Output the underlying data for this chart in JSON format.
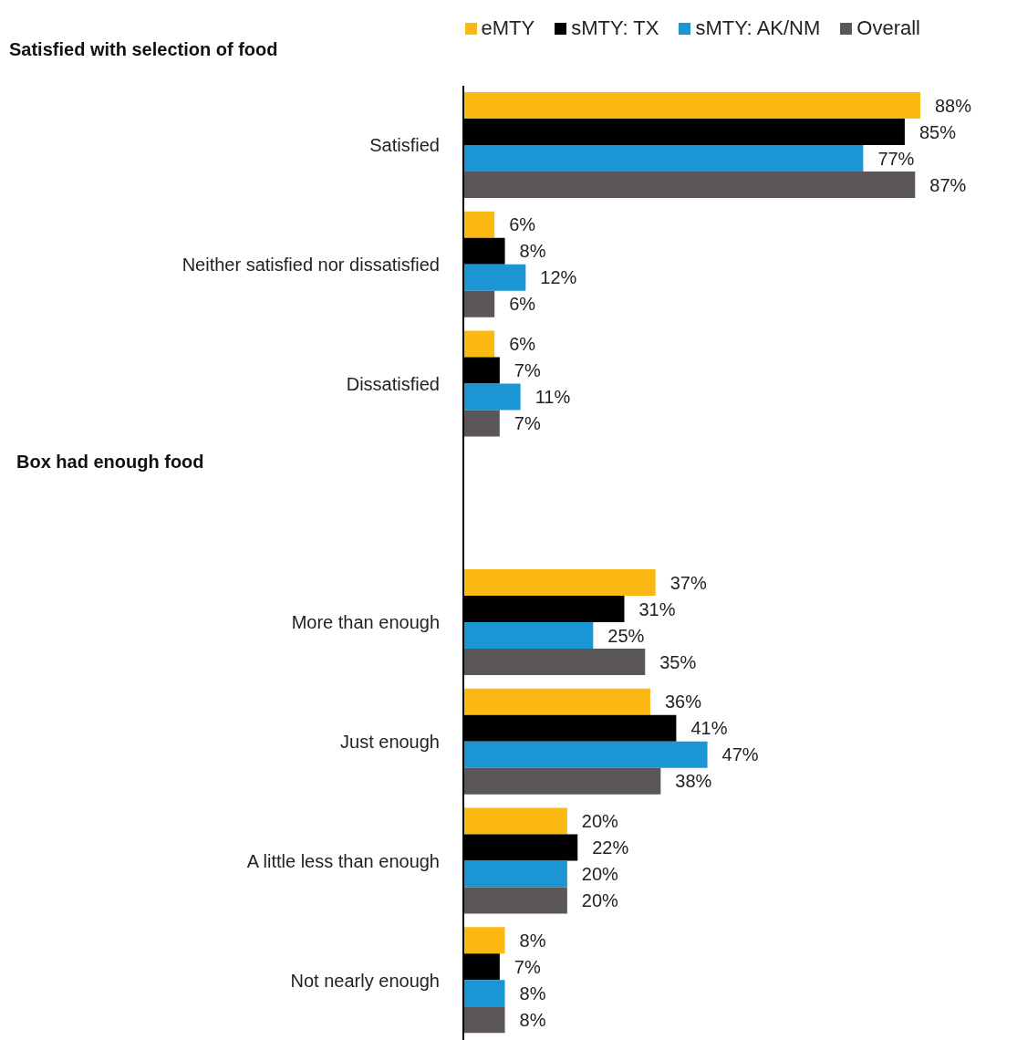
{
  "chart_data": {
    "type": "bar",
    "orientation": "horizontal",
    "categories": [
      "Satisfied",
      "Neither satisfied nor dissatisfied",
      "Dissatisfied",
      null,
      "More than enough",
      "Just enough",
      "A little less than enough",
      "Not nearly enough"
    ],
    "annotations": [
      "Satisfied with selection of food",
      "Box had enough food"
    ],
    "tick_labels": "y",
    "legend": "top right",
    "grid": false,
    "series": [
      {
        "name": "eMTY",
        "color": "#fdb913",
        "values": [
          88,
          6,
          6,
          null,
          37,
          36,
          20,
          8
        ],
        "value_labels": [
          "88%",
          "6%",
          "6%",
          null,
          "37%",
          "36%",
          "20%",
          "8%"
        ]
      },
      {
        "name": "sMTY: TX",
        "color": "#000000",
        "values": [
          85,
          8,
          7,
          null,
          31,
          41,
          22,
          7
        ],
        "value_labels": [
          "85%",
          "8%",
          "7%",
          null,
          "31%",
          "41%",
          "22%",
          "7%"
        ]
      },
      {
        "name": "sMTY: AK/NM",
        "color": "#1a96d4",
        "values": [
          77,
          12,
          11,
          null,
          25,
          47,
          20,
          8
        ],
        "value_labels": [
          "77%",
          "12%",
          "11%",
          null,
          "25%",
          "47%",
          "20%",
          "8%"
        ]
      },
      {
        "name": "Overall",
        "color": "#5b5657",
        "values": [
          87,
          6,
          7,
          null,
          35,
          38,
          20,
          8
        ],
        "value_labels": [
          "87%",
          "6%",
          "7%",
          null,
          "35%",
          "38%",
          "20%",
          "8%"
        ]
      }
    ]
  }
}
